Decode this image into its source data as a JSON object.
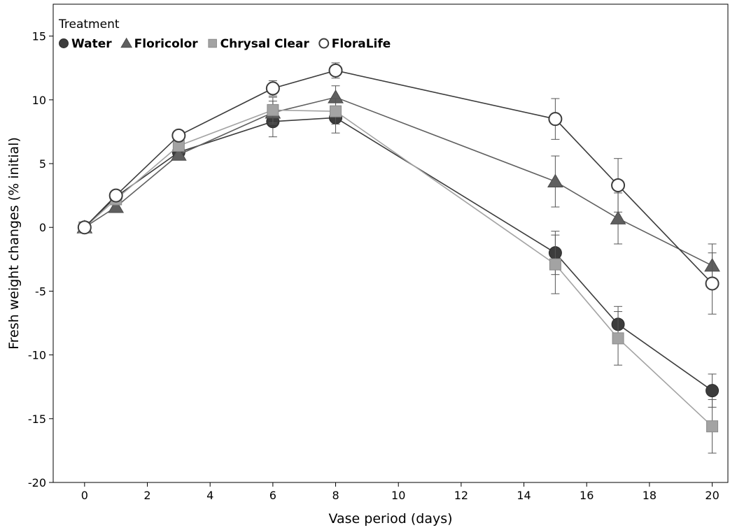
{
  "chart_data": {
    "type": "line",
    "xlabel": "Vase period (days)",
    "ylabel": "Fresh weight changes (% initial)",
    "xlim": [
      -1,
      20.5
    ],
    "ylim": [
      -20,
      17.5
    ],
    "xticks": [
      0,
      2,
      4,
      6,
      8,
      10,
      12,
      14,
      16,
      18,
      20
    ],
    "yticks": [
      -20,
      -15,
      -10,
      -5,
      0,
      5,
      10,
      15
    ],
    "grid": false,
    "legend_title": "Treatment",
    "legend_position": "top-left",
    "series": [
      {
        "name": "Water",
        "marker": "filled-circle",
        "color": "#3c3c3c",
        "x": [
          0,
          1,
          3,
          6,
          8,
          15,
          17,
          20
        ],
        "y": [
          0,
          2.4,
          5.9,
          8.3,
          8.6,
          -2.0,
          -7.6,
          -12.8
        ],
        "err": [
          0,
          0,
          0,
          1.2,
          1.2,
          1.7,
          1.4,
          1.3
        ]
      },
      {
        "name": "Floricolor",
        "marker": "filled-triangle",
        "color": "#5f5f5f",
        "x": [
          0,
          1,
          3,
          6,
          8,
          15,
          17,
          20
        ],
        "y": [
          0,
          1.6,
          5.7,
          9.0,
          10.2,
          3.6,
          0.7,
          -3.0
        ],
        "err": [
          0,
          0,
          0,
          0.9,
          0.9,
          2.0,
          2.0,
          1.7
        ]
      },
      {
        "name": "Chrysal Clear",
        "marker": "filled-square",
        "color": "#a3a3a3",
        "x": [
          0,
          1,
          3,
          6,
          8,
          15,
          17,
          20
        ],
        "y": [
          0,
          2.2,
          6.4,
          9.2,
          9.1,
          -2.9,
          -8.7,
          -15.6
        ],
        "err": [
          0,
          0,
          0,
          1.0,
          1.0,
          2.3,
          2.1,
          2.1
        ]
      },
      {
        "name": "FloraLife",
        "marker": "open-circle",
        "color": "#3c3c3c",
        "x": [
          0,
          1,
          3,
          6,
          8,
          15,
          17,
          20
        ],
        "y": [
          0,
          2.5,
          7.2,
          10.9,
          12.3,
          8.5,
          3.3,
          -4.4
        ],
        "err": [
          0,
          0,
          0,
          0.6,
          0.6,
          1.6,
          2.1,
          2.4
        ]
      }
    ]
  }
}
